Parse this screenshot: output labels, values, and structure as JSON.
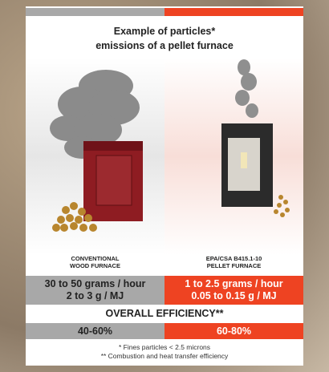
{
  "header": {
    "title": [
      "Example of particles*",
      "emissions of a pellet furnace"
    ]
  },
  "comparison": {
    "left": {
      "label": [
        "CONVENTIONAL",
        "WOOD FURNACE"
      ],
      "emission": [
        "30 to 50 grams / hour",
        "2 to 3 g / MJ"
      ],
      "efficiency": "40-60%"
    },
    "right": {
      "label": [
        "EPA/CSA B415.1-10",
        "PELLET FURNACE"
      ],
      "emission": [
        "1 to 2.5 grams / hour",
        "0.05 to 0.15 g / MJ"
      ],
      "efficiency": "60-80%"
    }
  },
  "efficiency_heading": "OVERALL EFFICIENCY**",
  "footnotes": [
    "* Fines particles < 2.5 microns",
    "** Combustion and heat transfer efficiency"
  ]
}
